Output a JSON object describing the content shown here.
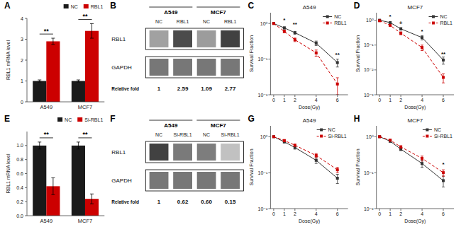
{
  "chart_data": [
    {
      "type": "bar",
      "panel_label": "A",
      "categories": [
        "A549",
        "MCF7"
      ],
      "ylabel": "RBL1 mRNA level",
      "ylim": [
        0,
        4.0
      ],
      "yticks": [
        0,
        1,
        2,
        3,
        4
      ],
      "legend": "upper right",
      "series": [
        {
          "name": "NC",
          "color": "#1a1a1a",
          "values": [
            1.0,
            1.0
          ],
          "errors": [
            0.05,
            0.05
          ]
        },
        {
          "name": "RBL1",
          "color": "#cc0000",
          "values": [
            2.9,
            3.4
          ],
          "errors": [
            0.15,
            0.35
          ]
        }
      ],
      "annotations": [
        {
          "x": "A549",
          "text": "**"
        },
        {
          "x": "MCF7",
          "text": "**"
        }
      ]
    },
    {
      "type": "blot",
      "panel_label": "B",
      "groups": [
        "A549",
        "MCF7"
      ],
      "categories": [
        "NC",
        "RBL1",
        "NC",
        "RBL1"
      ],
      "rows": [
        "RBL1",
        "GAPDH"
      ],
      "values_title": "Relative fold",
      "values": [
        1,
        2.59,
        1.09,
        2.77
      ],
      "data_labels": true
    },
    {
      "type": "line",
      "panel_label": "C",
      "title": "A549",
      "xlabel": "Dose(Gy)",
      "ylabel": "Survival Fraction",
      "log": "y",
      "x": [
        0,
        1,
        2,
        4,
        6
      ],
      "xlim": [
        -0.3,
        7
      ],
      "xticks": [
        0,
        1,
        2,
        4,
        6
      ],
      "ylim": [
        0.01,
        2
      ],
      "yticks": [
        {
          "value": 0.01,
          "label": "10⁻²"
        },
        {
          "value": 0.1,
          "label": "10⁻¹"
        },
        {
          "value": 1,
          "label": "10⁰"
        }
      ],
      "legend": "upper right",
      "series": [
        {
          "name": "NC",
          "color": "#333333",
          "marker": "square",
          "line_style": "solid",
          "values": [
            1.0,
            0.75,
            0.55,
            0.28,
            0.08
          ],
          "errors": [
            0.0,
            0.05,
            0.05,
            0.04,
            0.02
          ]
        },
        {
          "name": "RBL1",
          "color": "#cc0000",
          "marker": "square",
          "line_style": "dashed",
          "values": [
            1.0,
            0.6,
            0.35,
            0.15,
            0.02
          ],
          "errors": [
            0.0,
            0.05,
            0.04,
            0.03,
            0.01
          ]
        }
      ],
      "annotations": [
        {
          "x": 1,
          "text": "*"
        },
        {
          "x": 2,
          "text": "**"
        },
        {
          "x": 6,
          "text": "**"
        }
      ]
    },
    {
      "type": "line",
      "panel_label": "D",
      "title": "MCF7",
      "xlabel": "Dose(Gy)",
      "ylabel": "Survival Fraction",
      "log": "y",
      "x": [
        0,
        1,
        2,
        4,
        6
      ],
      "xlim": [
        -0.3,
        7
      ],
      "xticks": [
        0,
        1,
        2,
        4,
        6
      ],
      "ylim": [
        0.001,
        2
      ],
      "yticks": [
        {
          "value": 0.001,
          "label": "10⁻³"
        },
        {
          "value": 0.01,
          "label": "10⁻²"
        },
        {
          "value": 0.1,
          "label": "10⁻¹"
        },
        {
          "value": 1,
          "label": "10⁰"
        }
      ],
      "legend": "upper right",
      "series": [
        {
          "name": "NC",
          "color": "#333333",
          "marker": "square",
          "line_style": "solid",
          "values": [
            1.0,
            0.8,
            0.45,
            0.2,
            0.025
          ],
          "errors": [
            0.0,
            0.06,
            0.05,
            0.04,
            0.008
          ]
        },
        {
          "name": "RBL1",
          "color": "#cc0000",
          "marker": "square",
          "line_style": "dashed",
          "values": [
            0.95,
            0.62,
            0.3,
            0.08,
            0.005
          ],
          "errors": [
            0.02,
            0.05,
            0.04,
            0.02,
            0.002
          ]
        }
      ],
      "annotations": [
        {
          "x": 1,
          "text": "*"
        },
        {
          "x": 2,
          "text": "+"
        },
        {
          "x": 4,
          "text": "*"
        },
        {
          "x": 6,
          "text": "**"
        }
      ]
    },
    {
      "type": "bar",
      "panel_label": "E",
      "categories": [
        "A549",
        "MCF7"
      ],
      "ylabel": "RBL1 mRNA level",
      "ylim": [
        0,
        1.2
      ],
      "yticks": [
        {
          "value": 0.0,
          "label": "0.0"
        },
        0.2,
        0.4,
        0.6,
        0.8,
        {
          "value": 1.0,
          "label": "1.0"
        }
      ],
      "legend": "upper right",
      "series": [
        {
          "name": "NC",
          "color": "#1a1a1a",
          "values": [
            1.0,
            1.0
          ],
          "errors": [
            0.05,
            0.05
          ]
        },
        {
          "name": "Si-RBL1",
          "color": "#cc0000",
          "values": [
            0.42,
            0.24
          ],
          "errors": [
            0.12,
            0.07
          ]
        }
      ],
      "annotations": [
        {
          "x": "A549",
          "text": "**"
        },
        {
          "x": "MCF7",
          "text": "**"
        }
      ]
    },
    {
      "type": "blot",
      "panel_label": "F",
      "groups": [
        "A549",
        "MCF7"
      ],
      "categories": [
        "NC",
        "Si-RBL1",
        "NC",
        "Si-RBL1"
      ],
      "rows": [
        "RBL1",
        "GAPDH"
      ],
      "values_title": "Relative fold",
      "values": [
        1,
        0.62,
        0.6,
        0.15
      ],
      "value_labels": [
        "1",
        "0.62",
        "0.60",
        "0.15"
      ],
      "data_labels": true
    },
    {
      "type": "line",
      "panel_label": "G",
      "title": "A549",
      "xlabel": "Dose(Gy)",
      "ylabel": "Survival Fraction",
      "log": "y",
      "x": [
        0,
        1,
        2,
        4,
        6
      ],
      "xlim": [
        -0.3,
        7
      ],
      "xticks": [
        0,
        1,
        2,
        4,
        6
      ],
      "ylim": [
        0.01,
        2
      ],
      "yticks": [
        {
          "value": 0.01,
          "label": "10⁻²"
        },
        {
          "value": 0.1,
          "label": "10⁻¹"
        },
        {
          "value": 1,
          "label": "10⁰"
        }
      ],
      "legend": "upper right",
      "series": [
        {
          "name": "NC",
          "color": "#333333",
          "marker": "square",
          "line_style": "solid",
          "values": [
            1.0,
            0.72,
            0.5,
            0.22,
            0.07
          ],
          "errors": [
            0.0,
            0.05,
            0.05,
            0.04,
            0.02
          ]
        },
        {
          "name": "Si-RBL1",
          "color": "#cc0000",
          "marker": "square",
          "line_style": "dashed",
          "values": [
            1.0,
            0.78,
            0.58,
            0.3,
            0.12
          ],
          "errors": [
            0.0,
            0.05,
            0.04,
            0.04,
            0.02
          ]
        }
      ]
    },
    {
      "type": "line",
      "panel_label": "H",
      "title": "MCF7",
      "xlabel": "Dose(Gy)",
      "ylabel": "Survival Fraction",
      "log": "y",
      "x": [
        0,
        1,
        2,
        4,
        6
      ],
      "xlim": [
        -0.3,
        7
      ],
      "xticks": [
        0,
        1,
        2,
        4,
        6
      ],
      "ylim": [
        0.01,
        2
      ],
      "yticks": [
        {
          "value": 0.01,
          "label": "10⁻²"
        },
        {
          "value": 0.1,
          "label": "10⁻¹"
        },
        {
          "value": 1,
          "label": "10⁰"
        }
      ],
      "legend": "upper right",
      "series": [
        {
          "name": "NC",
          "color": "#333333",
          "marker": "square",
          "line_style": "solid",
          "values": [
            1.0,
            0.75,
            0.45,
            0.18,
            0.06
          ],
          "errors": [
            0.0,
            0.05,
            0.04,
            0.04,
            0.02
          ]
        },
        {
          "name": "Si-RBL1",
          "color": "#cc0000",
          "marker": "square",
          "line_style": "dashed",
          "values": [
            1.0,
            0.8,
            0.52,
            0.25,
            0.1
          ],
          "errors": [
            0.0,
            0.05,
            0.04,
            0.04,
            0.02
          ]
        }
      ],
      "annotations": [
        {
          "x": 6,
          "text": "*"
        }
      ]
    }
  ]
}
